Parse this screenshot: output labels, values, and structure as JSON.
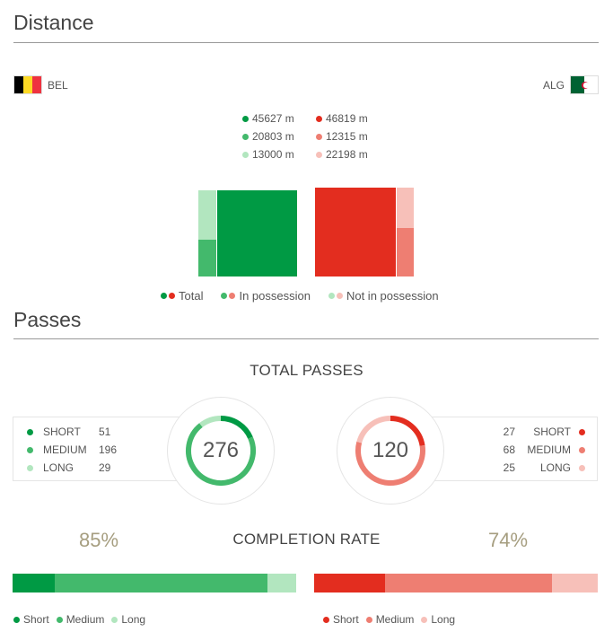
{
  "distance": {
    "title": "Distance",
    "home": {
      "code": "BEL"
    },
    "away": {
      "code": "ALG"
    },
    "home_stats": [
      "45627 m",
      "20803 m",
      "13000 m"
    ],
    "away_stats": [
      "46819 m",
      "12315 m",
      "22198 m"
    ],
    "legend": [
      "Total",
      "In possession",
      "Not in possession"
    ],
    "colors": {
      "home": [
        "#009a44",
        "#43b96c",
        "#b2e6bf"
      ],
      "away": [
        "#e32d1f",
        "#ee7e72",
        "#f7c0b9"
      ]
    }
  },
  "passes": {
    "title": "Passes",
    "total_label": "TOTAL PASSES",
    "home": {
      "total": "276",
      "rows": [
        {
          "label": "SHORT",
          "value": "51"
        },
        {
          "label": "MEDIUM",
          "value": "196"
        },
        {
          "label": "LONG",
          "value": "29"
        }
      ],
      "completion": "85%"
    },
    "away": {
      "total": "120",
      "rows": [
        {
          "label": "SHORT",
          "value": "27"
        },
        {
          "label": "MEDIUM",
          "value": "68"
        },
        {
          "label": "LONG",
          "value": "25"
        }
      ],
      "completion": "74%"
    },
    "completion_label": "COMPLETION RATE",
    "bar_legend": [
      "Short",
      "Medium",
      "Long"
    ]
  }
}
